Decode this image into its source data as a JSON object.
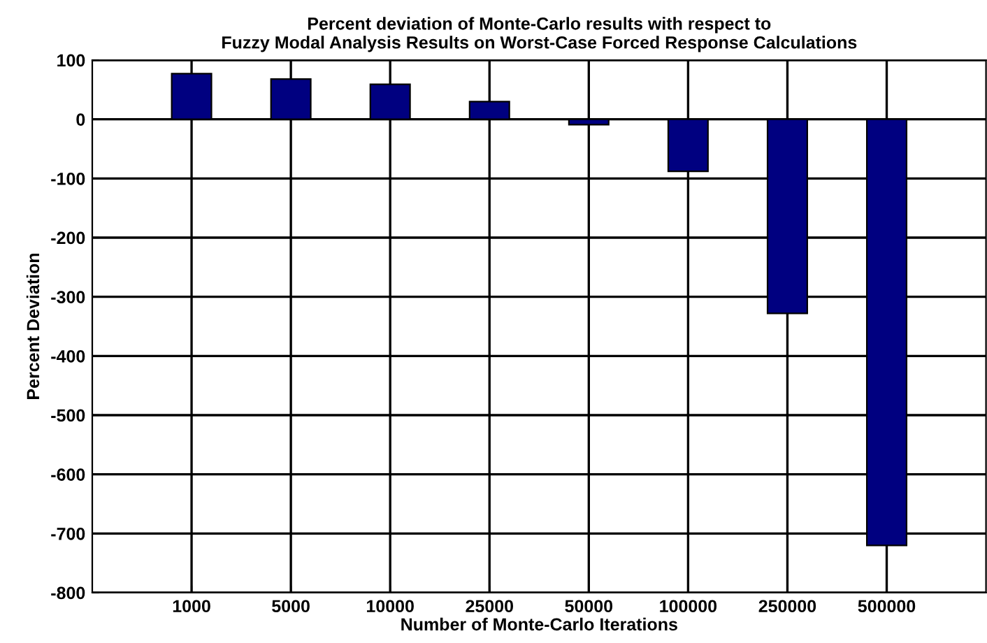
{
  "chart_data": {
    "type": "bar",
    "title": "Percent deviation of Monte-Carlo results with respect to\nFuzzy Modal Analysis Results on Worst-Case Forced Response Calculations",
    "xlabel": "Number of Monte-Carlo Iterations",
    "ylabel": "Percent Deviation",
    "categories": [
      "1000",
      "5000",
      "10000",
      "25000",
      "50000",
      "100000",
      "250000",
      "500000"
    ],
    "values": [
      77,
      68,
      59,
      30,
      -9,
      -88,
      -328,
      -720
    ],
    "color": "#000080",
    "ylim": [
      -800,
      100
    ],
    "yticks": [
      -800,
      -700,
      -600,
      -500,
      -400,
      -300,
      -200,
      -100,
      0,
      100
    ],
    "grid": true
  }
}
